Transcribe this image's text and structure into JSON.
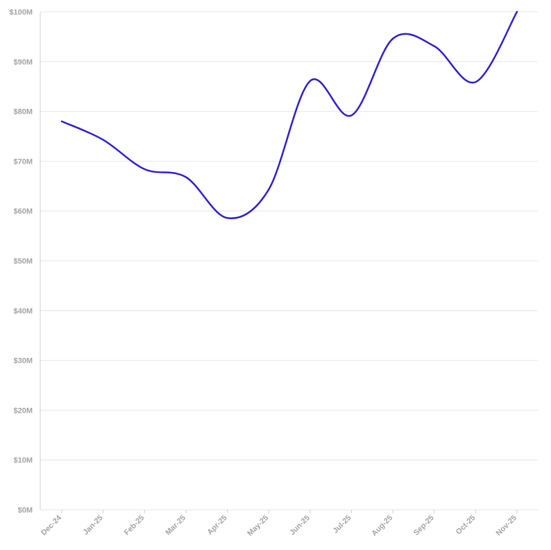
{
  "chart_data": {
    "type": "line",
    "title": "",
    "xlabel": "",
    "ylabel": "",
    "categories": [
      "Dec-24",
      "Jan-25",
      "Feb-25",
      "Mar-25",
      "Apr-25",
      "May-25",
      "Jun-25",
      "Jul-25",
      "Aug-25",
      "Sep-25",
      "Oct-25",
      "Nov-25"
    ],
    "series": [
      {
        "values": [
          78.0,
          74.3,
          68.4,
          66.8,
          58.6,
          64.3,
          86.1,
          79.2,
          94.6,
          93.1,
          85.9,
          100.0
        ]
      }
    ],
    "yticks": [
      "$0M",
      "$10M",
      "$20M",
      "$30M",
      "$40M",
      "$50M",
      "$60M",
      "$70M",
      "$80M",
      "$90M",
      "$100M"
    ],
    "ylim": [
      0,
      100
    ],
    "grid": true,
    "legend": "none",
    "colors": {
      "line": "#2b1fd0",
      "grid": "#e6e6e6",
      "tick": "#a3a3a3"
    }
  }
}
